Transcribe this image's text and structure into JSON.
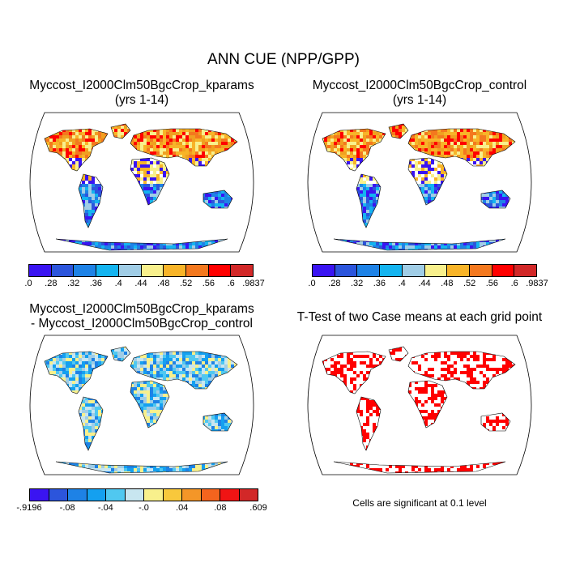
{
  "title": "ANN CUE (NPP/GPP)",
  "panels": [
    {
      "title_line1": "Myccost_I2000Clm50BgcCrop_kparams",
      "title_line2": "(yrs 1-14)"
    },
    {
      "title_line1": "Myccost_I2000Clm50BgcCrop_control",
      "title_line2": "(yrs 1-14)"
    },
    {
      "title_line1": "Myccost_I2000Clm50BgcCrop_kparams",
      "title_line2": "- Myccost_I2000Clm50BgcCrop_control"
    },
    {
      "title_line1": "T-Test of two Case means at each grid point",
      "title_line2": ""
    }
  ],
  "colorbar_levels": {
    "colors": [
      "#3a14f2",
      "#2c55dc",
      "#1e82e6",
      "#14b4f0",
      "#a0cde6",
      "#f8f08c",
      "#f8b428",
      "#f4781e",
      "#ff0000",
      "#d22828"
    ],
    "labels": [
      ".0",
      ".28",
      ".32",
      ".36",
      ".4",
      ".44",
      ".48",
      ".52",
      ".56",
      ".6",
      ".9837"
    ]
  },
  "colorbar_diff": {
    "colors": [
      "#3a14f2",
      "#2c55dc",
      "#1e82e6",
      "#14a0f0",
      "#50c8f0",
      "#c8e6f0",
      "#f8f08c",
      "#f8c83c",
      "#f49628",
      "#f4641e",
      "#f01414",
      "#d22828"
    ],
    "labels": [
      "-.9196",
      "-.08",
      "-.04",
      "-.0",
      ".04",
      ".08",
      ".609"
    ]
  },
  "significance_note": "Cells are significant at 0.1 level",
  "significance_color": "#ff0000"
}
